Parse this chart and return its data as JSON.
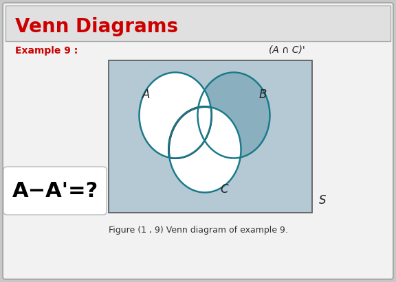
{
  "title": "Venn Diagrams",
  "title_color": "#cc0000",
  "example_label": "Example 9 :",
  "example_color": "#cc0000",
  "bg_outer": "#c8c8c8",
  "bg_slide": "#f2f2f2",
  "bg_inner_rect": "#b5c9d5",
  "circle_color": "#1a7a8a",
  "circle_linewidth": 1.8,
  "highlight_stroke": "#111111",
  "highlight_stroke_lw": 2.2,
  "shaded_fill": "#8ab0c0",
  "caption": "Figure (1 , 9) Venn diagram of example 9.",
  "badge_text": "A−A'=?",
  "badge_bg": "#ffffff",
  "badge_text_color": "#000000",
  "label_anc": "(A ∩ C)'",
  "label_S": "S",
  "label_A": "A",
  "label_B": "B",
  "label_C": "C",
  "fig_w": 5.76,
  "fig_h": 4.11,
  "dpi": 100
}
